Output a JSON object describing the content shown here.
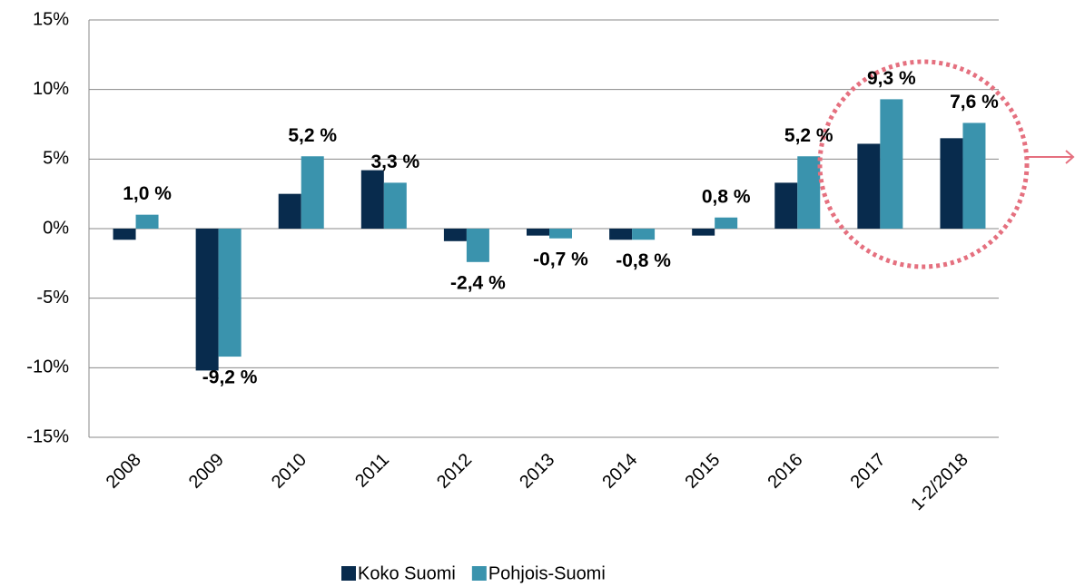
{
  "chart_data": {
    "type": "bar",
    "categories": [
      "2008",
      "2009",
      "2010",
      "2011",
      "2012",
      "2013",
      "2014",
      "2015",
      "2016",
      "2017",
      "1-2/2018"
    ],
    "series": [
      {
        "name": "Koko Suomi",
        "color": "#082b4d",
        "values": [
          -0.8,
          -10.2,
          2.5,
          4.2,
          -0.9,
          -0.5,
          -0.8,
          -0.5,
          3.3,
          6.1,
          6.5
        ]
      },
      {
        "name": "Pohjois-Suomi",
        "color": "#3a93ad",
        "values": [
          1.0,
          -9.2,
          5.2,
          3.3,
          -2.4,
          -0.7,
          -0.8,
          0.8,
          5.2,
          9.3,
          7.6
        ],
        "value_labels": [
          "1,0 %",
          "-9,2 %",
          "5,2 %",
          "3,3 %",
          "-2,4 %",
          "-0,7 %",
          "-0,8 %",
          "0,8 %",
          "5,2 %",
          "9,3 %",
          "7,6 %"
        ]
      }
    ],
    "ylim": [
      -15,
      15
    ],
    "yticks": [
      {
        "value": -15,
        "label": "-15%"
      },
      {
        "value": -10,
        "label": "-10%"
      },
      {
        "value": -5,
        "label": "-5%"
      },
      {
        "value": 0,
        "label": "0%"
      },
      {
        "value": 5,
        "label": "5%"
      },
      {
        "value": 10,
        "label": "10%"
      },
      {
        "value": 15,
        "label": "15%"
      }
    ],
    "grid": true,
    "legend": "bottom"
  }
}
